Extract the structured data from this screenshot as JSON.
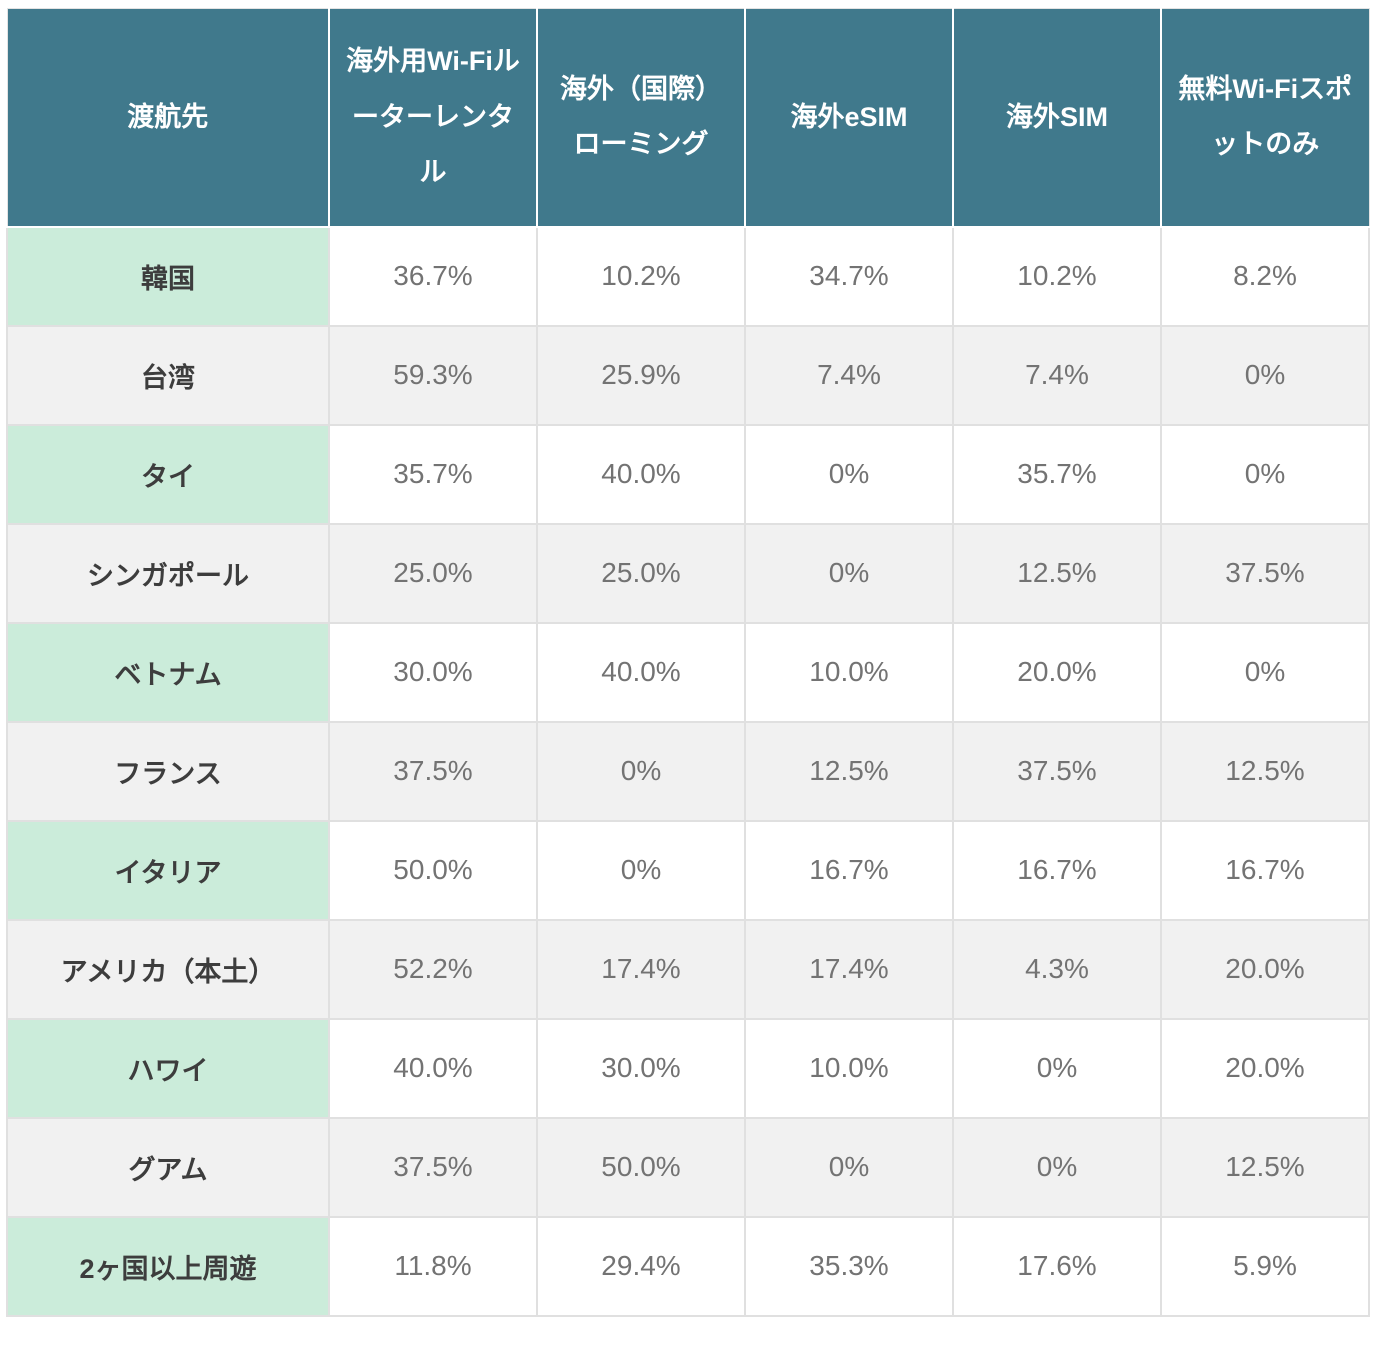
{
  "colors": {
    "header_bg": "#40798c",
    "header_text": "#ffffff",
    "label_col_bg": "#cbecda",
    "label_text": "#3d3d3d",
    "value_text": "#737373",
    "alt_row_bg": "#f1f1f1",
    "grid_line": "#e0e0e0"
  },
  "chart_data": {
    "type": "table",
    "columns": [
      "渡航先",
      "海外用Wi-Fiルーターレンタル",
      "海外（国際）ローミング",
      "海外eSIM",
      "海外SIM",
      "無料Wi-Fiスポットのみ"
    ],
    "rows": [
      {
        "label": "韓国",
        "values": [
          "36.7%",
          "10.2%",
          "34.7%",
          "10.2%",
          "8.2%"
        ]
      },
      {
        "label": "台湾",
        "values": [
          "59.3%",
          "25.9%",
          "7.4%",
          "7.4%",
          "0%"
        ]
      },
      {
        "label": "タイ",
        "values": [
          "35.7%",
          "40.0%",
          "0%",
          "35.7%",
          "0%"
        ]
      },
      {
        "label": "シンガポール",
        "values": [
          "25.0%",
          "25.0%",
          "0%",
          "12.5%",
          "37.5%"
        ]
      },
      {
        "label": "ベトナム",
        "values": [
          "30.0%",
          "40.0%",
          "10.0%",
          "20.0%",
          "0%"
        ]
      },
      {
        "label": "フランス",
        "values": [
          "37.5%",
          "0%",
          "12.5%",
          "37.5%",
          "12.5%"
        ]
      },
      {
        "label": "イタリア",
        "values": [
          "50.0%",
          "0%",
          "16.7%",
          "16.7%",
          "16.7%"
        ]
      },
      {
        "label": "アメリカ（本土）",
        "values": [
          "52.2%",
          "17.4%",
          "17.4%",
          "4.3%",
          "20.0%"
        ]
      },
      {
        "label": "ハワイ",
        "values": [
          "40.0%",
          "30.0%",
          "10.0%",
          "0%",
          "20.0%"
        ]
      },
      {
        "label": "グアム",
        "values": [
          "37.5%",
          "50.0%",
          "0%",
          "0%",
          "12.5%"
        ]
      },
      {
        "label": "2ヶ国以上周遊",
        "values": [
          "11.8%",
          "29.4%",
          "35.3%",
          "17.6%",
          "5.9%"
        ]
      }
    ]
  }
}
